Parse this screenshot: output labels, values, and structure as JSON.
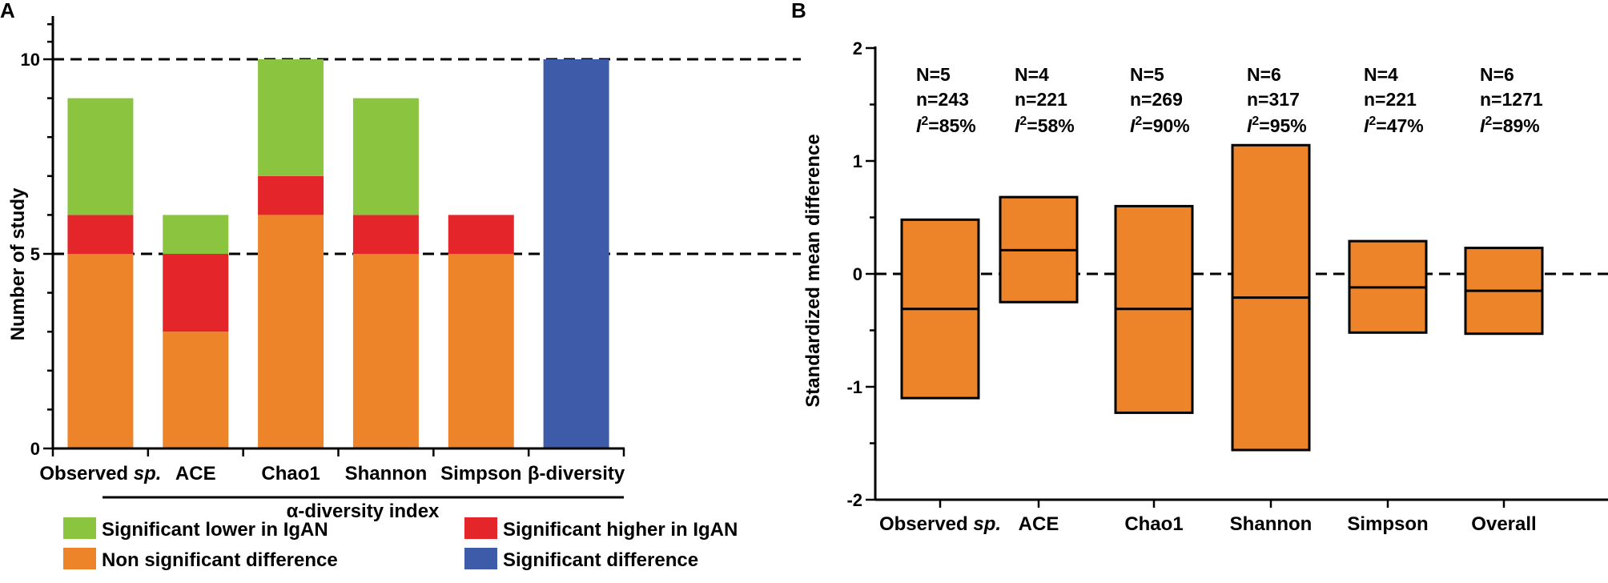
{
  "colors": {
    "lower": "#8BC53F",
    "higher": "#E4262B",
    "nonsig": "#ED842A",
    "sigdiff": "#3D5BA8",
    "box": "#ED842A"
  },
  "chart_data": [
    {
      "panel": "A",
      "type": "bar",
      "stacked": true,
      "ylabel": "Number of study",
      "ylim": [
        0,
        10
      ],
      "yticks": [
        "0",
        "5",
        "10"
      ],
      "reference_lines": [
        5,
        10
      ],
      "categories": [
        "Observed sp.",
        "ACE",
        "Chao1",
        "Shannon",
        "Simpson",
        "β-diversity"
      ],
      "category_labels": [
        {
          "main": "Observed ",
          "italic": "sp."
        },
        {
          "main": "ACE",
          "italic": ""
        },
        {
          "main": "Chao1",
          "italic": ""
        },
        {
          "main": "Shannon",
          "italic": ""
        },
        {
          "main": "Simpson",
          "italic": ""
        },
        {
          "main": "β-diversity",
          "italic": ""
        }
      ],
      "group_label": "α-diversity index",
      "series": [
        {
          "name": "Non significant difference",
          "key": "nonsig",
          "values": [
            5,
            3,
            6,
            5,
            5,
            0
          ]
        },
        {
          "name": "Significant higher in IgAN",
          "key": "higher",
          "values": [
            1,
            2,
            1,
            1,
            1,
            0
          ]
        },
        {
          "name": "Significant lower in IgAN",
          "key": "lower",
          "values": [
            3,
            1,
            3,
            3,
            0,
            0
          ]
        },
        {
          "name": "Significant difference",
          "key": "sigdiff",
          "values": [
            0,
            0,
            0,
            0,
            0,
            10
          ]
        }
      ],
      "legend": [
        {
          "label": "Significant lower in IgAN",
          "key": "lower"
        },
        {
          "label": "Significant higher in IgAN",
          "key": "higher"
        },
        {
          "label": "Non significant difference",
          "key": "nonsig"
        },
        {
          "label": "Significant difference",
          "key": "sigdiff"
        }
      ]
    },
    {
      "panel": "B",
      "type": "box",
      "ylabel": "Standardized mean difference",
      "ylim": [
        -2,
        2
      ],
      "yticks": [
        "-2",
        "-1",
        "0",
        "1",
        "2"
      ],
      "reference_lines": [
        0
      ],
      "categories": [
        "Observed sp.",
        "ACE",
        "Chao1",
        "Shannon",
        "Simpson",
        "Overall"
      ],
      "category_labels": [
        {
          "main": "Observed ",
          "italic": "sp."
        },
        {
          "main": "ACE",
          "italic": ""
        },
        {
          "main": "Chao1",
          "italic": ""
        },
        {
          "main": "Shannon",
          "italic": ""
        },
        {
          "main": "Simpson",
          "italic": ""
        },
        {
          "main": "Overall",
          "italic": ""
        }
      ],
      "boxes": [
        {
          "low": -1.1,
          "mid": -0.31,
          "high": 0.48
        },
        {
          "low": -0.25,
          "mid": 0.21,
          "high": 0.68
        },
        {
          "low": -1.23,
          "mid": -0.31,
          "high": 0.6
        },
        {
          "low": -1.56,
          "mid": -0.21,
          "high": 1.14
        },
        {
          "low": -0.52,
          "mid": -0.12,
          "high": 0.29
        },
        {
          "low": -0.53,
          "mid": -0.15,
          "high": 0.23
        }
      ],
      "annotations": [
        {
          "N": "N=5",
          "n": "n=243",
          "i2_sym": "I",
          "i2_sup": "2",
          "i2_val": "=85%"
        },
        {
          "N": "N=4",
          "n": "n=221",
          "i2_sym": "I",
          "i2_sup": "2",
          "i2_val": "=58%"
        },
        {
          "N": "N=5",
          "n": "n=269",
          "i2_sym": "I",
          "i2_sup": "2",
          "i2_val": "=90%"
        },
        {
          "N": "N=6",
          "n": "n=317",
          "i2_sym": "I",
          "i2_sup": "2",
          "i2_val": "=95%"
        },
        {
          "N": "N=4",
          "n": "n=221",
          "i2_sym": "I",
          "i2_sup": "2",
          "i2_val": "=47%"
        },
        {
          "N": "N=6",
          "n": "n=1271",
          "i2_sym": "I",
          "i2_sup": "2",
          "i2_val": "=89%"
        }
      ]
    }
  ]
}
